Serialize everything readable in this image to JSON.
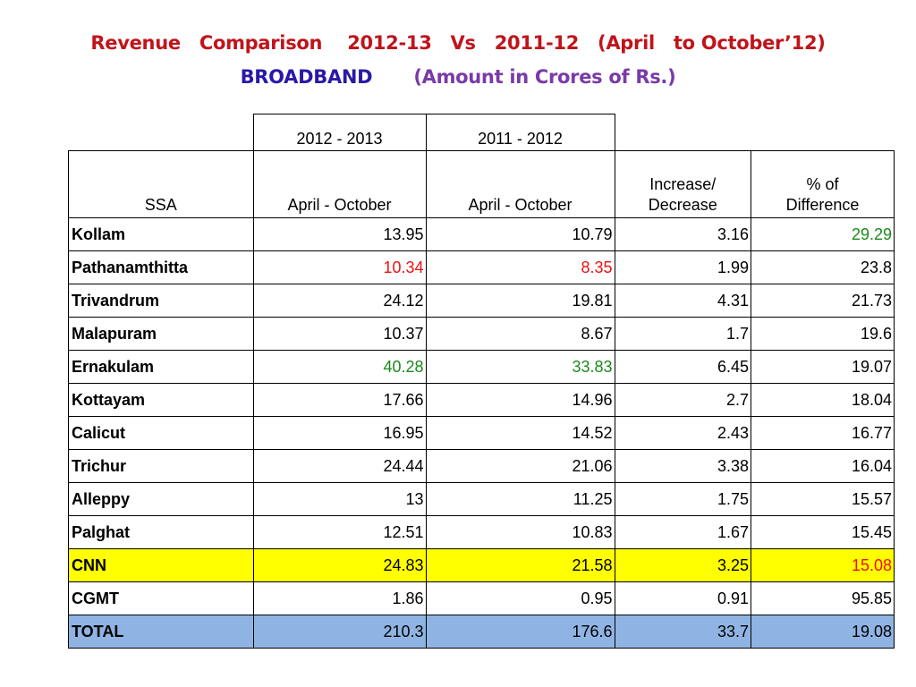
{
  "title": {
    "line1": "Revenue   Comparison    2012-13   Vs   2011-12   (April   to October’12)",
    "broadband": "BROADBAND",
    "amount": "(Amount in Crores of Rs.)"
  },
  "table": {
    "year1": "2012  -  2013",
    "year2": "2011 - 2012",
    "headers": {
      "ssa": "SSA",
      "period1": "April - October",
      "period2": "April - October",
      "inc_line1": "Increase/",
      "inc_line2": "Decrease",
      "pct_line1": "% of",
      "pct_line2": "Difference"
    },
    "rows": [
      {
        "ssa": "Kollam",
        "v2013": "13.95",
        "v2012": "10.79",
        "diff": "3.16",
        "pct": "29.29"
      },
      {
        "ssa": "Pathanamthitta",
        "v2013": "10.34",
        "v2012": "8.35",
        "diff": "1.99",
        "pct": "23.8"
      },
      {
        "ssa": "Trivandrum",
        "v2013": "24.12",
        "v2012": "19.81",
        "diff": "4.31",
        "pct": "21.73"
      },
      {
        "ssa": "Malapuram",
        "v2013": "10.37",
        "v2012": "8.67",
        "diff": "1.7",
        "pct": "19.6"
      },
      {
        "ssa": "Ernakulam",
        "v2013": "40.28",
        "v2012": "33.83",
        "diff": "6.45",
        "pct": "19.07"
      },
      {
        "ssa": "Kottayam",
        "v2013": "17.66",
        "v2012": "14.96",
        "diff": "2.7",
        "pct": "18.04"
      },
      {
        "ssa": "Calicut",
        "v2013": "16.95",
        "v2012": "14.52",
        "diff": "2.43",
        "pct": "16.77"
      },
      {
        "ssa": "Trichur",
        "v2013": "24.44",
        "v2012": "21.06",
        "diff": "3.38",
        "pct": "16.04"
      },
      {
        "ssa": "Alleppy",
        "v2013": "13",
        "v2012": "11.25",
        "diff": "1.75",
        "pct": "15.57"
      },
      {
        "ssa": "Palghat",
        "v2013": "12.51",
        "v2012": "10.83",
        "diff": "1.67",
        "pct": "15.45"
      },
      {
        "ssa": "CNN",
        "v2013": "24.83",
        "v2012": "21.58",
        "diff": "3.25",
        "pct": "15.08"
      },
      {
        "ssa": "CGMT",
        "v2013": "1.86",
        "v2012": "0.95",
        "diff": "0.91",
        "pct": "95.85"
      },
      {
        "ssa": "TOTAL",
        "v2013": "210.3",
        "v2012": "176.6",
        "diff": "33.7",
        "pct": "19.08"
      }
    ]
  },
  "colors": {
    "title_red": "#c0141b",
    "broadband_blue": "#2a19a6",
    "amount_purple": "#7a3aa8",
    "highlight_red": "#ee1111",
    "highlight_green": "#1a8a1a",
    "cnn_row_yellow": "#ffff00",
    "total_row_blue": "#8fb4e3"
  }
}
